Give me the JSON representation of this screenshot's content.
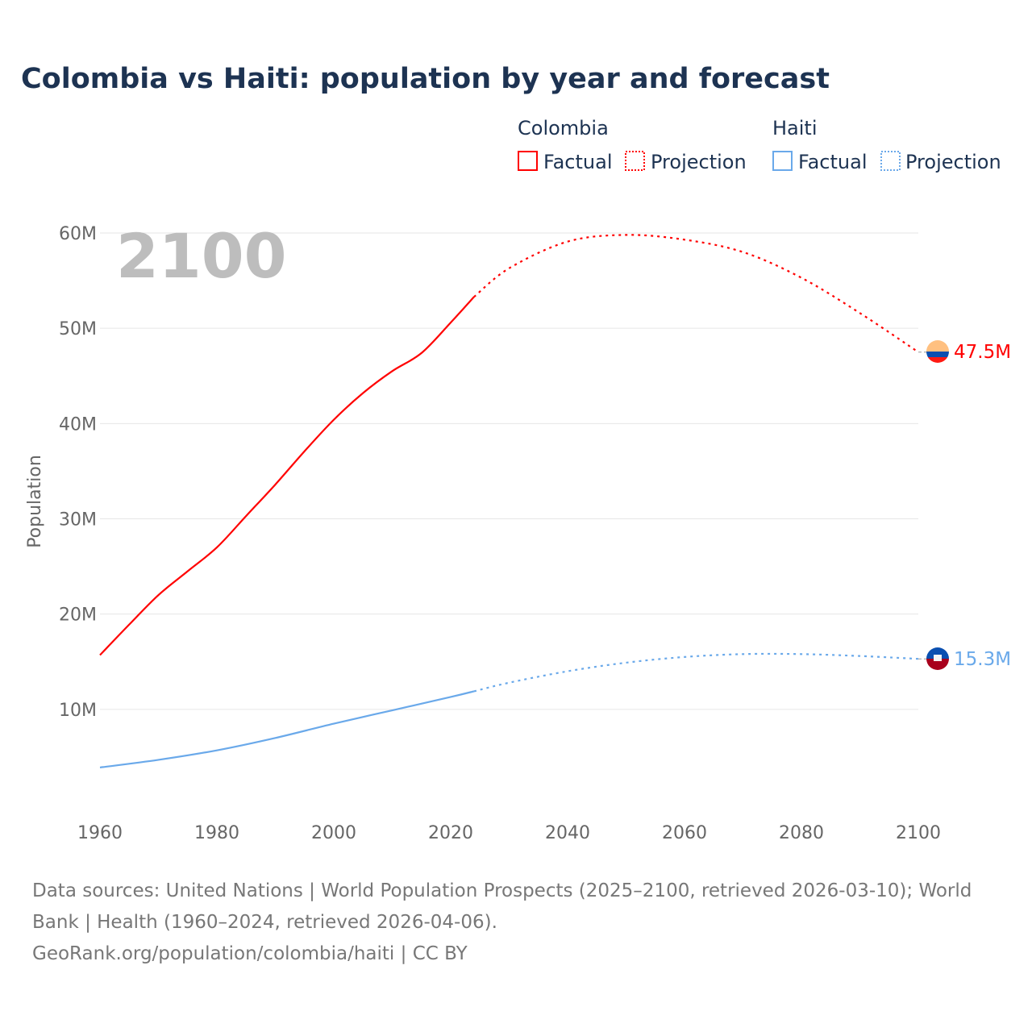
{
  "title": "Colombia vs Haiti: population by year and forecast",
  "legend": {
    "groups": [
      {
        "name": "Colombia",
        "factual": "Factual",
        "projection": "Projection",
        "color": "#ff0000"
      },
      {
        "name": "Haiti",
        "factual": "Factual",
        "projection": "Projection",
        "color": "#6aa9ea"
      }
    ]
  },
  "current_year_label": "2100",
  "footer": {
    "line1": "Data sources: United Nations | World Population Prospects (2025–2100, retrieved 2026-03-10); World",
    "line2": "Bank | Health (1960–2024, retrieved 2026-04-06).",
    "line3": "GeoRank.org/population/colombia/haiti | CC BY"
  },
  "chart_data": {
    "type": "line",
    "title": "Colombia vs Haiti: population by year and forecast",
    "xlabel": "",
    "ylabel": "Population",
    "xlim": [
      1960,
      2100
    ],
    "ylim": [
      0,
      60000000
    ],
    "x_ticks": [
      "1960",
      "1980",
      "2000",
      "2020",
      "2040",
      "2060",
      "2080",
      "2100"
    ],
    "y_ticks": [
      {
        "value": 10000000,
        "label": "10M"
      },
      {
        "value": 20000000,
        "label": "20M"
      },
      {
        "value": 30000000,
        "label": "30M"
      },
      {
        "value": 40000000,
        "label": "40M"
      },
      {
        "value": 50000000,
        "label": "50M"
      },
      {
        "value": 60000000,
        "label": "60M"
      }
    ],
    "grid": true,
    "legend_position": "top-right",
    "series": [
      {
        "name": "Colombia",
        "color": "#ff0000",
        "end_label": "47.5M",
        "factual": {
          "x": [
            1960,
            1965,
            1970,
            1975,
            1980,
            1985,
            1990,
            1995,
            2000,
            2005,
            2010,
            2015,
            2020,
            2024
          ],
          "y": [
            15.7,
            18.9,
            22.0,
            24.5,
            27.0,
            30.3,
            33.6,
            37.1,
            40.4,
            43.2,
            45.5,
            47.4,
            50.6,
            53.3
          ]
        },
        "projection": {
          "x": [
            2024,
            2030,
            2040,
            2050,
            2060,
            2070,
            2080,
            2090,
            2100
          ],
          "y": [
            53.3,
            56.3,
            59.1,
            59.8,
            59.3,
            58.0,
            55.3,
            51.6,
            47.5
          ]
        }
      },
      {
        "name": "Haiti",
        "color": "#6aa9ea",
        "end_label": "15.3M",
        "factual": {
          "x": [
            1960,
            1970,
            1980,
            1990,
            2000,
            2010,
            2020,
            2024
          ],
          "y": [
            3.9,
            4.7,
            5.7,
            7.0,
            8.5,
            9.9,
            11.3,
            11.9
          ]
        },
        "projection": {
          "x": [
            2024,
            2030,
            2040,
            2050,
            2060,
            2070,
            2080,
            2090,
            2100
          ],
          "y": [
            11.9,
            12.8,
            14.0,
            14.9,
            15.5,
            15.8,
            15.8,
            15.6,
            15.3
          ]
        }
      }
    ],
    "y_unit": "millions"
  }
}
